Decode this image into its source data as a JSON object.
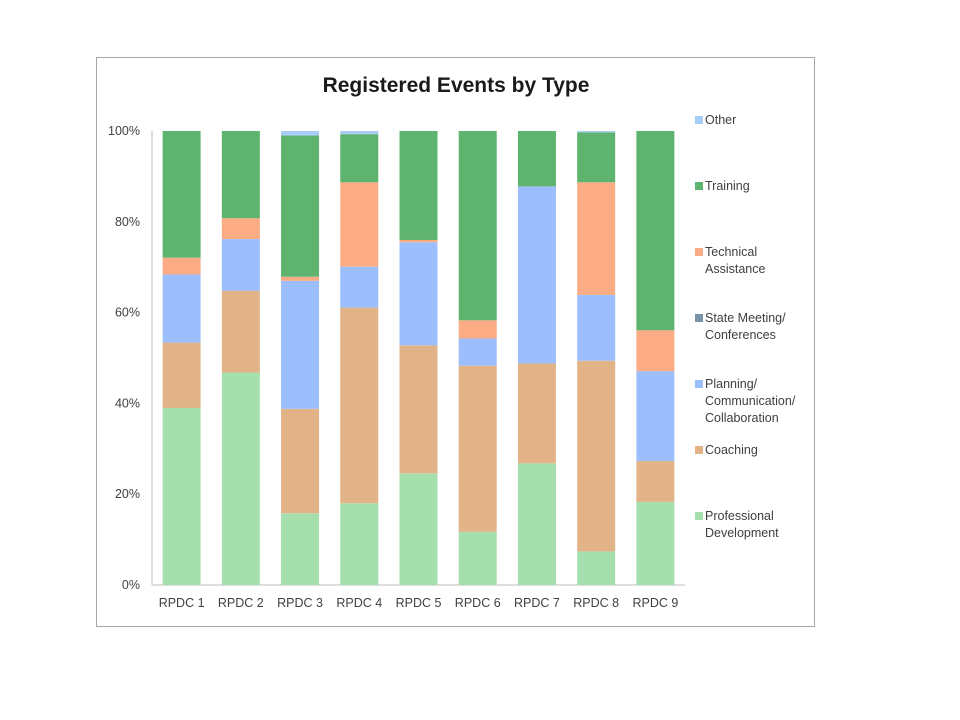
{
  "chart_data": {
    "type": "bar",
    "stacked": true,
    "percent": true,
    "title": "Registered Events by Type",
    "xlabel": "",
    "ylabel": "",
    "ylim": [
      0,
      100
    ],
    "yticks": [
      "0%",
      "20%",
      "40%",
      "60%",
      "80%",
      "100%"
    ],
    "grid": false,
    "legend_position": "right",
    "categories": [
      "RPDC 1",
      "RPDC 2",
      "RPDC 3",
      "RPDC 4",
      "RPDC 5",
      "RPDC 6",
      "RPDC 7",
      "RPDC 8",
      "RPDC 9"
    ],
    "series": [
      {
        "name": "Professional Development",
        "color": "#a6dfae",
        "values": [
          39,
          46.8,
          15.8,
          18,
          24.6,
          11.7,
          26.8,
          7.4,
          18.3
        ]
      },
      {
        "name": "Coaching",
        "color": "#e2b386",
        "values": [
          14.4,
          18,
          23,
          43.1,
          28.2,
          36.6,
          22,
          42,
          9
        ]
      },
      {
        "name": "Planning/ Communication/ Collaboration",
        "color": "#9dbefc",
        "values": [
          15,
          11.4,
          28.2,
          9,
          22.7,
          6,
          39,
          14.5,
          19.8
        ]
      },
      {
        "name": "State Meeting/ Conferences",
        "color": "#7a93a8",
        "values": [
          0,
          0,
          0,
          0,
          0,
          0,
          0,
          0,
          0
        ]
      },
      {
        "name": "Technical Assistance",
        "color": "#fbac84",
        "values": [
          3.7,
          4.6,
          0.9,
          18.6,
          0.5,
          4,
          0,
          24.8,
          9
        ]
      },
      {
        "name": "Training",
        "color": "#5eb46e",
        "values": [
          27.9,
          19.2,
          31.1,
          10.6,
          24,
          41.7,
          12.2,
          11,
          43.9
        ]
      },
      {
        "name": "Other",
        "color": "#a9cdf6",
        "values": [
          0,
          0,
          1,
          0.7,
          0,
          0,
          0,
          0.3,
          0
        ]
      }
    ],
    "legend_order": [
      "Other",
      "Training",
      "Technical Assistance",
      "State Meeting/ Conferences",
      "Planning/ Communication/ Collaboration",
      "Coaching",
      "Professional Development"
    ],
    "legend_lines": [
      [
        "Other"
      ],
      [
        "Training"
      ],
      [
        "Technical",
        "Assistance"
      ],
      [
        "State Meeting/",
        "Conferences"
      ],
      [
        "Planning/",
        "Communication/",
        "Collaboration"
      ],
      [
        "Coaching"
      ],
      [
        "Professional",
        "Development"
      ]
    ],
    "axis_color": "#bfbfbf"
  }
}
